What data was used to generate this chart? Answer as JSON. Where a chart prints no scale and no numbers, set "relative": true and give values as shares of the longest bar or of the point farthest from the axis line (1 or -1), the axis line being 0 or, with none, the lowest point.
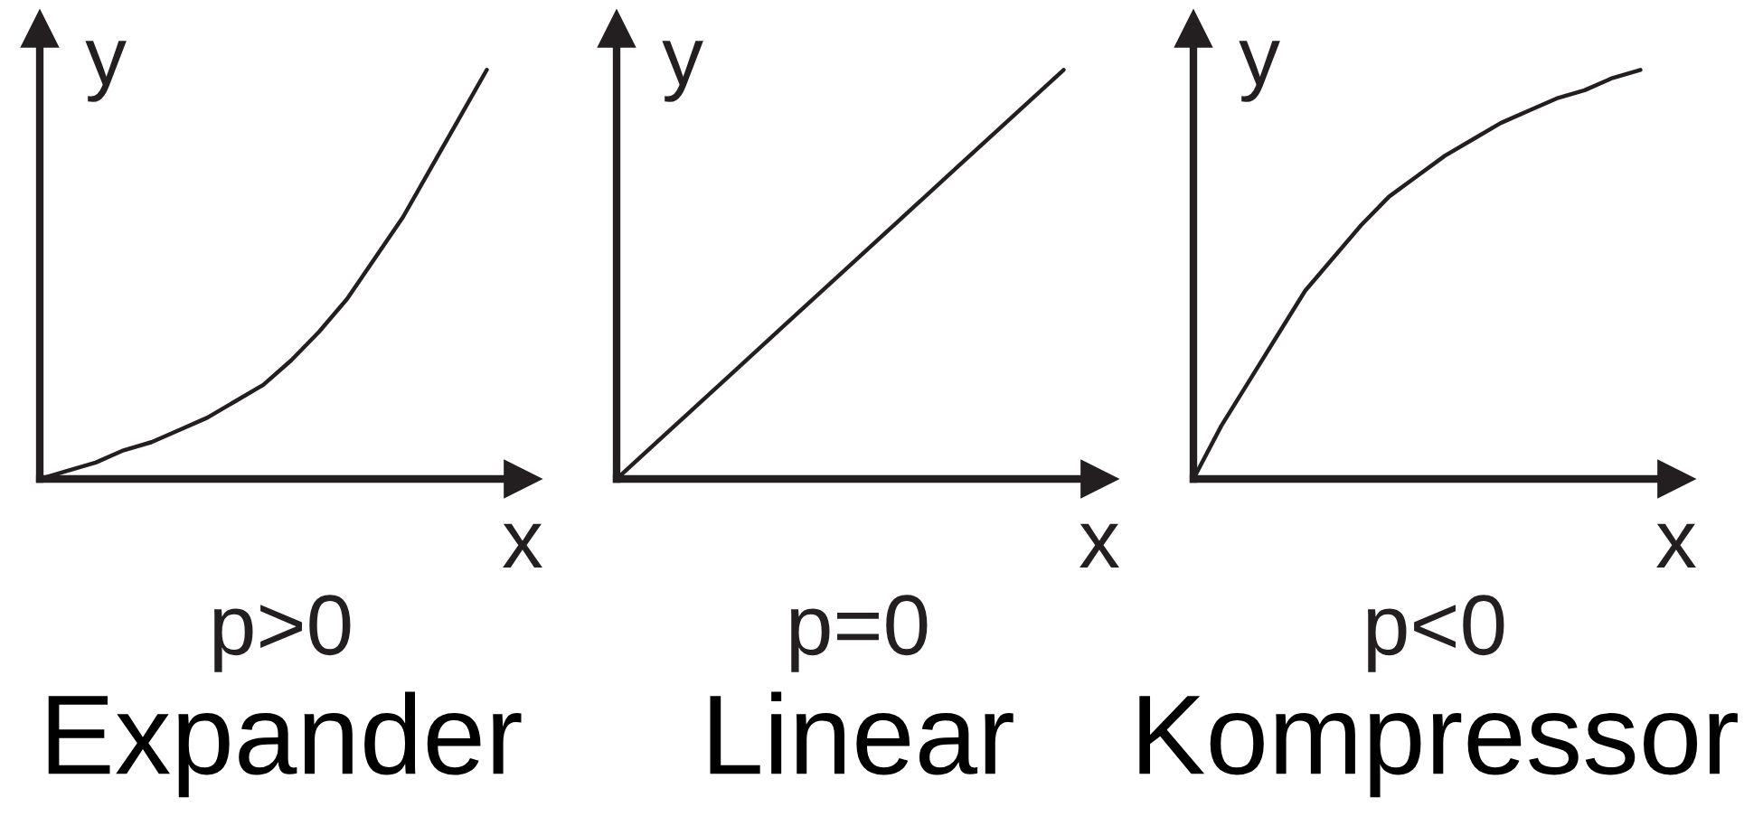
{
  "chart_data": [
    {
      "type": "line",
      "title": "Expander",
      "subtitle": "p>0",
      "xlabel": "x",
      "ylabel": "y",
      "relative": true,
      "categories": [
        null,
        null,
        null,
        null,
        null,
        null,
        null,
        null,
        null,
        null,
        null,
        null,
        null,
        null,
        null,
        null,
        null
      ],
      "series": [
        {
          "color": "#231f20",
          "values": [
            0,
            0.02,
            0.04,
            0.07,
            0.09,
            0.12,
            0.15,
            0.19,
            0.23,
            0.29,
            0.36,
            0.44,
            0.54,
            0.64,
            0.76,
            0.88,
            1
          ]
        }
      ]
    },
    {
      "type": "line",
      "title": "Linear",
      "subtitle": "p=0",
      "xlabel": "x",
      "ylabel": "y",
      "relative": true,
      "categories": [
        null,
        null,
        null,
        null,
        null,
        null,
        null,
        null,
        null
      ],
      "series": [
        {
          "color": "#231f20",
          "values": [
            0,
            0.125,
            0.25,
            0.375,
            0.5,
            0.625,
            0.75,
            0.875,
            1
          ]
        }
      ]
    },
    {
      "type": "line",
      "title": "Kompressor",
      "subtitle": "p<0",
      "xlabel": "x",
      "ylabel": "y",
      "relative": true,
      "categories": [
        null,
        null,
        null,
        null,
        null,
        null,
        null,
        null,
        null,
        null,
        null,
        null,
        null,
        null,
        null,
        null,
        null
      ],
      "series": [
        {
          "color": "#231f20",
          "values": [
            0,
            0.13,
            0.24,
            0.35,
            0.46,
            0.54,
            0.62,
            0.69,
            0.74,
            0.79,
            0.83,
            0.87,
            0.9,
            0.93,
            0.95,
            0.98,
            1
          ]
        }
      ]
    }
  ]
}
